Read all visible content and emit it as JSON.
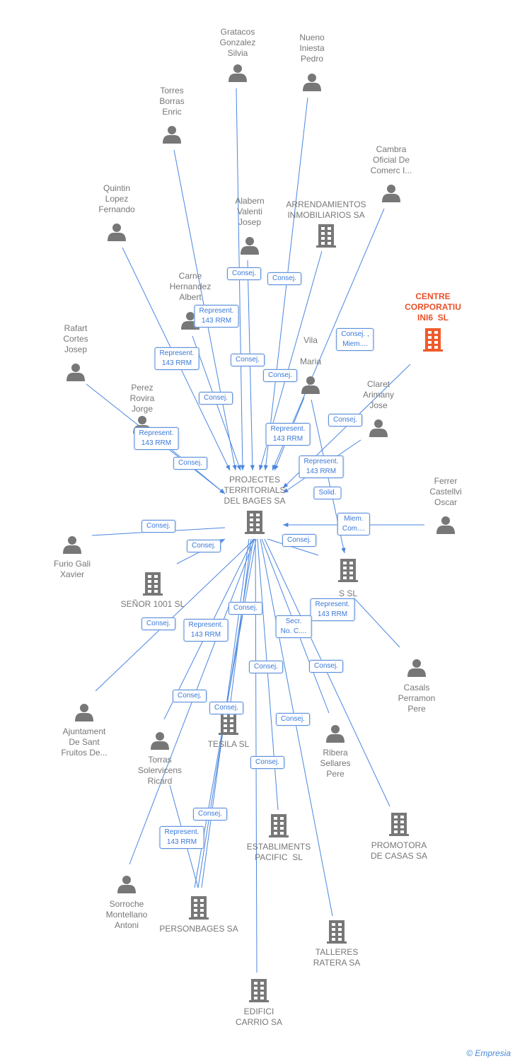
{
  "colors": {
    "edge": "#4a86e0",
    "node": "#777777",
    "highlight": "#f05a2a"
  },
  "nodes": [
    {
      "label": "Gratacos\nGonzalez\nSilvia",
      "type": "person"
    },
    {
      "label": "Nueno\nIniesta\nPedro",
      "type": "person"
    },
    {
      "label": "Torres\nBorras\nEnric",
      "type": "person"
    },
    {
      "label": "Cambra\nOficial De\nComerc I...",
      "type": "person"
    },
    {
      "label": "Quintin\nLopez\nFernando",
      "type": "person"
    },
    {
      "label": "Alabern\nValenti\nJosep",
      "type": "person"
    },
    {
      "label": "ARRENDAMIENTOS\nINMOBILIARIOS SA",
      "type": "company"
    },
    {
      "label": "CENTRE\nCORPORATIU\nINI6  SL",
      "type": "company",
      "highlight": true
    },
    {
      "label": "Carne\nHernandez\nAlbert",
      "type": "person"
    },
    {
      "label": "Rafart\nCortes\nJosep",
      "type": "person"
    },
    {
      "label": "Vila\n \nMaria",
      "type": "person"
    },
    {
      "label": "Claret\nArimany\nJose",
      "type": "person"
    },
    {
      "label": "Perez\nRovira\nJorge",
      "type": "person"
    },
    {
      "label": "PROJECTES\nTERRITORIALS\nDEL BAGES SA",
      "type": "company"
    },
    {
      "label": "Ferrer\nCastellvi\nOscar",
      "type": "person"
    },
    {
      "label": "Furio Gali\nXavier",
      "type": "person"
    },
    {
      "label": "SEÑOR 1001 SL",
      "type": "company"
    },
    {
      "label": "S SL",
      "type": "company"
    },
    {
      "label": "Casals\nPerramon\nPere",
      "type": "person"
    },
    {
      "label": "Ajuntament\nDe Sant\nFruitos De...",
      "type": "person"
    },
    {
      "label": "Torras\nSolervicens\nRicard",
      "type": "person"
    },
    {
      "label": "TESILA SL",
      "type": "company"
    },
    {
      "label": "Ribera\nSellares\nPere",
      "type": "person"
    },
    {
      "label": "ESTABLIMENTS\nPACIFIC  SL",
      "type": "company"
    },
    {
      "label": "PROMOTORA\nDE CASAS SA",
      "type": "company"
    },
    {
      "label": "Sorroche\nMontellano\nAntoni",
      "type": "person"
    },
    {
      "label": "PERSONBAGES SA",
      "type": "company"
    },
    {
      "label": "TALLERES\nRATERA SA",
      "type": "company"
    },
    {
      "label": "EDIFICI\nCARRIO SA",
      "type": "company"
    }
  ],
  "edge_labels": [
    "Consej.",
    "Consej.",
    "Represent.\n143 RRM",
    "Represent.\n143 RRM",
    "Consej.",
    "Consej. ,\nMiem....",
    "Consej.",
    "Consej.",
    "Consej.",
    "Represent.\n143 RRM",
    "Represent.\n143 RRM",
    "Consej.",
    "Solid.",
    "Represent.\n143 RRM",
    "Consej.",
    "Miem.\nCom....",
    "Consej.",
    "Consej.",
    "Represent.\n143 RRM",
    "Consej.",
    "Consej.",
    "Represent.\n143 RRM",
    "Secr.\nNo. C....",
    "Consej.",
    "Consej.",
    "Consej.",
    "Consej.",
    "Consej.",
    "Consej.",
    "Consej.",
    "Represent.\n143 RRM"
  ],
  "footer": {
    "copyright": "©",
    "brand": "Empresia"
  }
}
